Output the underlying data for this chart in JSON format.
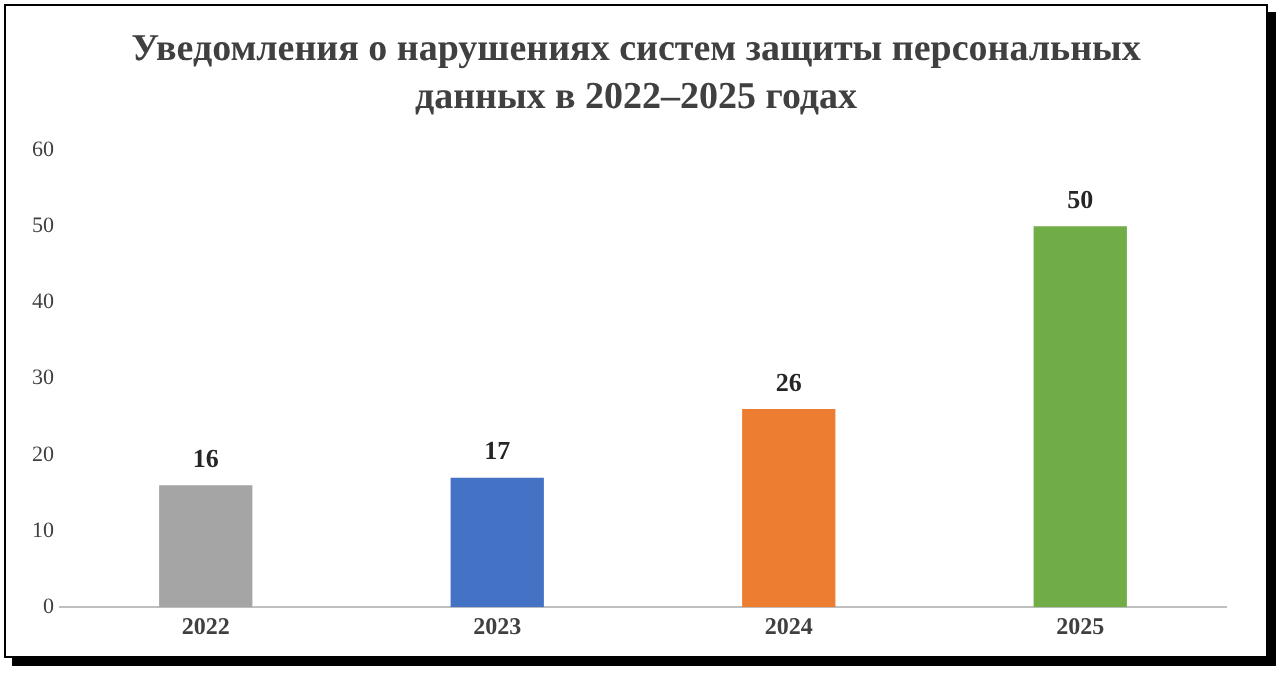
{
  "chart_data": {
    "type": "bar",
    "title": "Уведомления о нарушениях систем защиты персональных данных в 2022–2025 годах",
    "categories": [
      "2022",
      "2023",
      "2024",
      "2025"
    ],
    "values": [
      16,
      17,
      26,
      50
    ],
    "colors": [
      "#a5a5a5",
      "#4472c4",
      "#ed7d31",
      "#70ad47"
    ],
    "ylim": [
      0,
      60
    ],
    "yticks": [
      0,
      10,
      20,
      30,
      40,
      50,
      60
    ],
    "grid": false,
    "legend": false,
    "data_labels": true
  }
}
